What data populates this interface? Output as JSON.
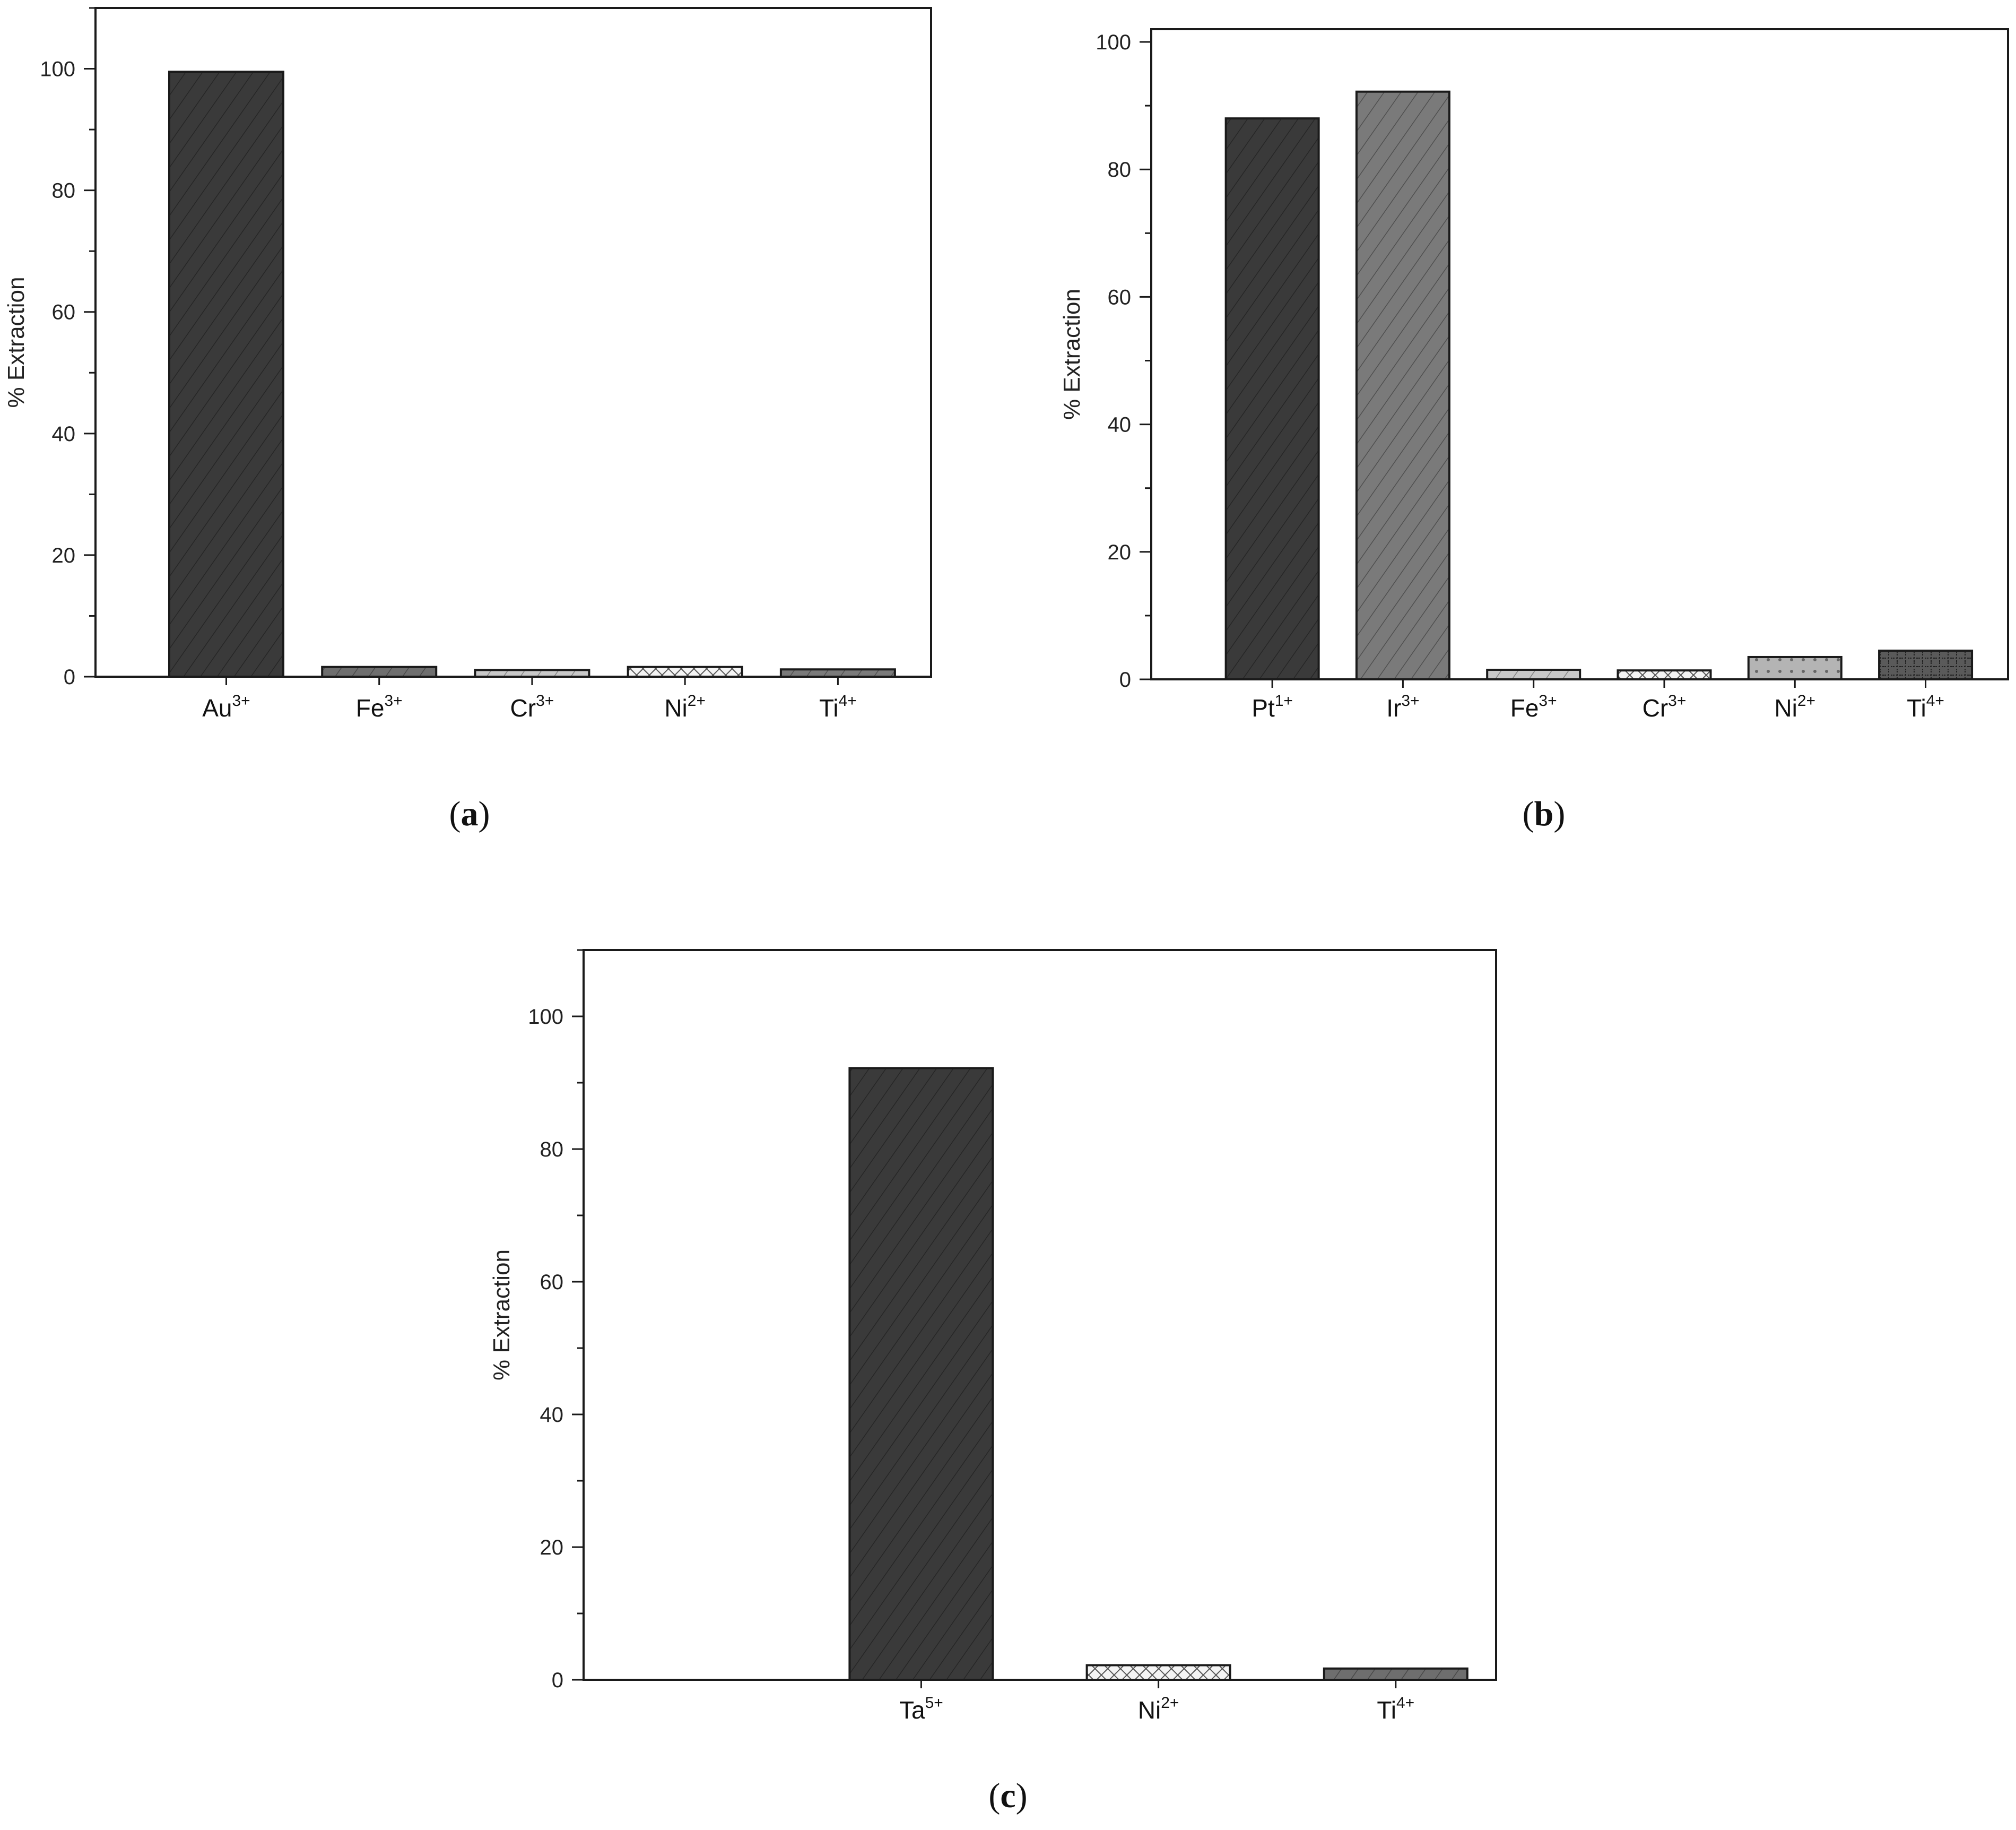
{
  "chart_data": [
    {
      "type": "bar",
      "caption": "a",
      "ylabel": "% Extraction",
      "ylim": [
        0,
        110
      ],
      "yticks": [
        0,
        20,
        40,
        60,
        80,
        100
      ],
      "grid": false,
      "categories": [
        {
          "base": "Au",
          "sup": "3+"
        },
        {
          "base": "Fe",
          "sup": "3+"
        },
        {
          "base": "Cr",
          "sup": "3+"
        },
        {
          "base": "Ni",
          "sup": "2+"
        },
        {
          "base": "Ti",
          "sup": "4+"
        }
      ],
      "values": [
        99.5,
        1.6,
        1.1,
        1.6,
        1.2
      ],
      "bar_colors": [
        "#3a3a3a",
        "#6e6e6e",
        "#c8c8c8",
        "#f4f4f4",
        "#7a7a7a"
      ],
      "bar_patterns": [
        "diag",
        "diag",
        "diag",
        "cross",
        "diag"
      ]
    },
    {
      "type": "bar",
      "caption": "b",
      "ylabel": "% Extraction",
      "ylim": [
        0,
        102
      ],
      "yticks": [
        0,
        20,
        40,
        60,
        80,
        100
      ],
      "grid": false,
      "categories": [
        {
          "base": "Pt",
          "sup": "1+"
        },
        {
          "base": "Ir",
          "sup": "3+"
        },
        {
          "base": "Fe",
          "sup": "3+"
        },
        {
          "base": "Cr",
          "sup": "3+"
        },
        {
          "base": "Ni",
          "sup": "2+"
        },
        {
          "base": "Ti",
          "sup": "4+"
        }
      ],
      "values": [
        88,
        92.2,
        1.5,
        1.4,
        3.5,
        4.5
      ],
      "bar_colors": [
        "#3a3a3a",
        "#7a7a7a",
        "#c8c8c8",
        "#f4f4f4",
        "#b4b4b4",
        "#5a5a5a"
      ],
      "bar_patterns": [
        "diag",
        "diag",
        "diag",
        "cross",
        "dots",
        "grid"
      ]
    },
    {
      "type": "bar",
      "caption": "c",
      "ylabel": "% Extraction",
      "ylim": [
        0,
        110
      ],
      "yticks": [
        0,
        20,
        40,
        60,
        80,
        100
      ],
      "grid": false,
      "categories": [
        {
          "base": "Ta",
          "sup": "5+"
        },
        {
          "base": "Ni",
          "sup": "2+"
        },
        {
          "base": "Ti",
          "sup": "4+"
        }
      ],
      "values": [
        92.2,
        2.2,
        1.7
      ],
      "bar_colors": [
        "#3a3a3a",
        "#f4f4f4",
        "#6e6e6e"
      ],
      "bar_patterns": [
        "diag",
        "cross",
        "diag"
      ]
    }
  ]
}
